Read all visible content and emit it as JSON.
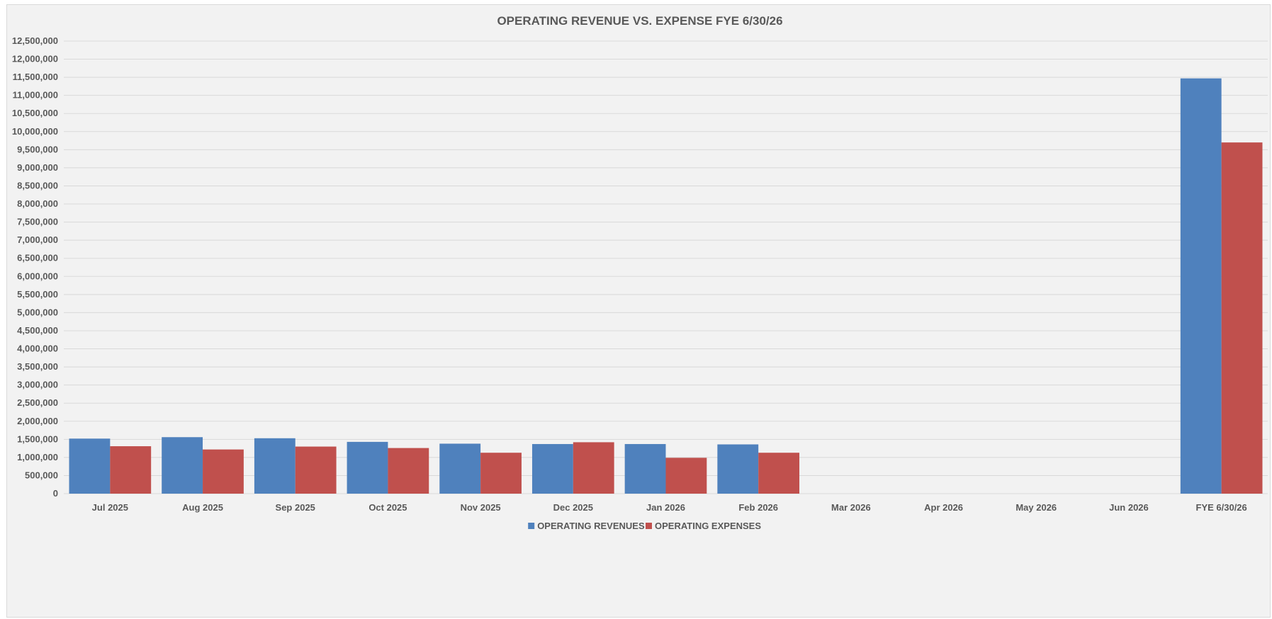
{
  "chart_data": {
    "type": "bar",
    "title": "OPERATING REVENUE VS. EXPENSE FYE 6/30/26",
    "xlabel": "",
    "ylabel": "",
    "ylim": [
      0,
      12500000
    ],
    "y_tick_step": 500000,
    "y_tick_labels": [
      "0",
      "500,000",
      "1,000,000",
      "1,500,000",
      "2,000,000",
      "2,500,000",
      "3,000,000",
      "3,500,000",
      "4,000,000",
      "4,500,000",
      "5,000,000",
      "5,500,000",
      "6,000,000",
      "6,500,000",
      "7,000,000",
      "7,500,000",
      "8,000,000",
      "8,500,000",
      "9,000,000",
      "9,500,000",
      "10,000,000",
      "10,500,000",
      "11,000,000",
      "11,500,000",
      "12,000,000",
      "12,500,000"
    ],
    "grid": true,
    "legend_position": "bottom",
    "categories": [
      "Jul 2025",
      "Aug 2025",
      "Sep 2025",
      "Oct 2025",
      "Nov 2025",
      "Dec 2025",
      "Jan 2026",
      "Feb 2026",
      "Mar 2026",
      "Apr 2026",
      "May 2026",
      "Jun 2026",
      "FYE 6/30/26"
    ],
    "series": [
      {
        "name": "OPERATING REVENUES",
        "color": "#4f81bd",
        "values": [
          1520000,
          1560000,
          1530000,
          1430000,
          1380000,
          1370000,
          1370000,
          1360000,
          0,
          0,
          0,
          0,
          11470000
        ]
      },
      {
        "name": "OPERATING EXPENSES",
        "color": "#c0504d",
        "values": [
          1310000,
          1220000,
          1300000,
          1260000,
          1130000,
          1420000,
          990000,
          1130000,
          0,
          0,
          0,
          0,
          9700000
        ]
      }
    ]
  },
  "colors": {
    "background": "#f2f2f2",
    "gridline": "#d9d9d9",
    "text": "#595959"
  }
}
